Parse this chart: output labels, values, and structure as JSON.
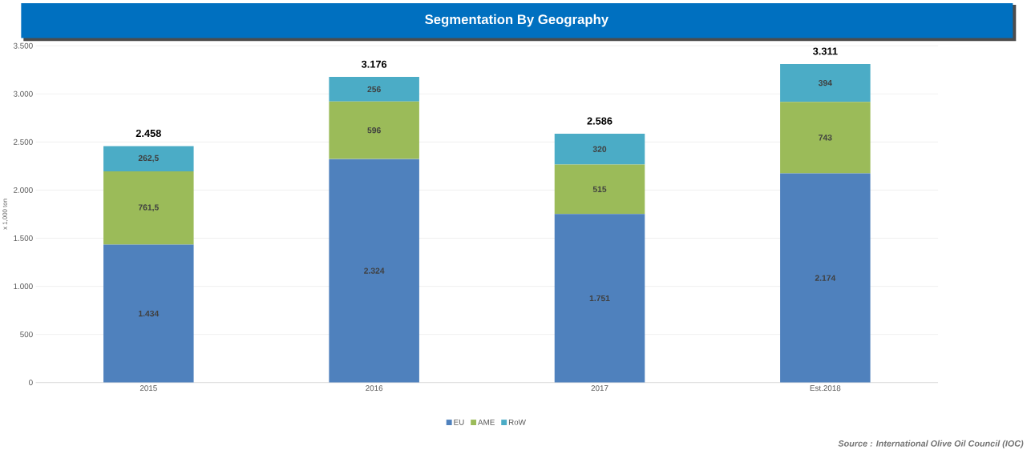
{
  "chart_data": {
    "type": "bar",
    "stacked": true,
    "title": "Segmentation By Geography",
    "ylabel": "x 1,000 ton",
    "categories": [
      "2015",
      "2016",
      "2017",
      "Est.2018"
    ],
    "series": [
      {
        "name": "EU",
        "color": "#4f81bd",
        "values": [
          1434,
          2324,
          1751,
          2174
        ],
        "value_labels": [
          "1.434",
          "2.324",
          "1.751",
          "2.174"
        ]
      },
      {
        "name": "AME",
        "color": "#9bbb59",
        "values": [
          761.5,
          596,
          515,
          743
        ],
        "value_labels": [
          "761,5",
          "596",
          "515",
          "743"
        ]
      },
      {
        "name": "RoW",
        "color": "#4bacc6",
        "values": [
          262.5,
          256,
          320,
          394
        ],
        "value_labels": [
          "262,5",
          "256",
          "320",
          "394"
        ]
      }
    ],
    "totals": [
      "2.458",
      "3.176",
      "2.586",
      "3.311"
    ],
    "ylim": [
      0,
      3500
    ],
    "yticks": [
      {
        "value": 0,
        "label": "0"
      },
      {
        "value": 500,
        "label": "500"
      },
      {
        "value": 1000,
        "label": "1.000"
      },
      {
        "value": 1500,
        "label": "1.500"
      },
      {
        "value": 2000,
        "label": "2.000"
      },
      {
        "value": 2500,
        "label": "2.500"
      },
      {
        "value": 3000,
        "label": "3.000"
      },
      {
        "value": 3500,
        "label": "3.500"
      }
    ],
    "grid": "y",
    "legend": "bottom",
    "annotations": [
      "Source : International Olive Oil Council (IOC)"
    ]
  }
}
